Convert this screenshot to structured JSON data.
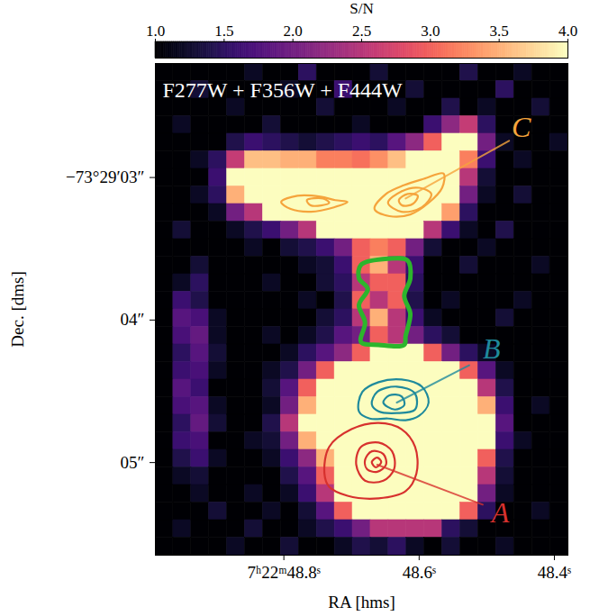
{
  "chart_data": {
    "type": "heatmap",
    "annotation": "F277W + F356W + F444W",
    "x_label": "RA [hms]",
    "y_label": "Dec. [dms]",
    "xlim": [
      48.99,
      48.38
    ],
    "xticks": [
      {
        "value": 48.8,
        "label": "7ʰ22ᵐ48.8ˢ"
      },
      {
        "value": 48.6,
        "label": "48.6ˢ"
      },
      {
        "value": 48.4,
        "label": "48.4ˢ"
      }
    ],
    "ylim": [
      2.2,
      5.65
    ],
    "yticks": [
      {
        "value": 3,
        "label": "−73°29′03″"
      },
      {
        "value": 4,
        "label": "04″"
      },
      {
        "value": 5,
        "label": "05″"
      }
    ],
    "colorbar": {
      "label": "S/N",
      "lim": [
        1,
        4
      ],
      "color": "magma",
      "ticks": [
        {
          "value": 1,
          "label": "1.0"
        },
        1.5,
        {
          "value": 2,
          "label": "2.0"
        },
        2.5,
        {
          "value": 3,
          "label": "3.0"
        },
        3.5,
        {
          "value": 4,
          "label": "4.0"
        }
      ]
    },
    "cells": [
      [
        1,
        1,
        1,
        1,
        1,
        1.2,
        1,
        1,
        1.5,
        1,
        1,
        1,
        1.3,
        1,
        1,
        1,
        1,
        1.4,
        1,
        1,
        1.2,
        1,
        1
      ],
      [
        1,
        1,
        1.3,
        1,
        1,
        1,
        1,
        1.2,
        1,
        1,
        1.6,
        1,
        1,
        1,
        1.3,
        1,
        1,
        1,
        1,
        1.5,
        1,
        1,
        1
      ],
      [
        1,
        1,
        1,
        1,
        1.2,
        1,
        1,
        1,
        1,
        1.3,
        1,
        1,
        1,
        1.2,
        1,
        1,
        1.4,
        1,
        1.2,
        1,
        1,
        1.3,
        1
      ],
      [
        1,
        1.2,
        1,
        1,
        1,
        1,
        1.3,
        1,
        1,
        1,
        1,
        1.2,
        1,
        1,
        1,
        1.6,
        2.2,
        2.6,
        1.5,
        1,
        1,
        1,
        1
      ],
      [
        1,
        1,
        1,
        1,
        1.4,
        1.6,
        1.5,
        1.4,
        1.3,
        1.4,
        1.5,
        1.6,
        1.5,
        1.8,
        2.2,
        3,
        4,
        4,
        2,
        1.2,
        1,
        1,
        1.2
      ],
      [
        1,
        1,
        1.2,
        1.5,
        2.6,
        3.6,
        3.6,
        3.5,
        3.5,
        3.2,
        3.2,
        3.1,
        3.3,
        3.6,
        4,
        4,
        4,
        3.2,
        1.6,
        1,
        1.2,
        1,
        1
      ],
      [
        1,
        1,
        1,
        1.6,
        4,
        4,
        4,
        4,
        4,
        4,
        4,
        4,
        4,
        4,
        4,
        4,
        4,
        2.5,
        1.3,
        1,
        1,
        1,
        1
      ],
      [
        1,
        1,
        1.2,
        1.5,
        3.5,
        4,
        4,
        4,
        4,
        4,
        4,
        4,
        4,
        4,
        4,
        4,
        4,
        2,
        1.2,
        1,
        1.3,
        1,
        1
      ],
      [
        1,
        1,
        1,
        1.2,
        2,
        2.5,
        4,
        4,
        4,
        4,
        4,
        4,
        4,
        4,
        4,
        4,
        3.4,
        1.5,
        1,
        1,
        1,
        1,
        1
      ],
      [
        1,
        1.3,
        1,
        1,
        1.2,
        1.4,
        1.6,
        2,
        2.5,
        4,
        4,
        4,
        4,
        4,
        4,
        2.5,
        1.6,
        1.2,
        1,
        1.4,
        1,
        1,
        1
      ],
      [
        1,
        1,
        1,
        1,
        1,
        1.2,
        1,
        1.3,
        1.4,
        1.6,
        2,
        3,
        3.2,
        3,
        2,
        1.3,
        1,
        1,
        1.2,
        1,
        1,
        1,
        1
      ],
      [
        1,
        1,
        1.3,
        1,
        1,
        1,
        1,
        1,
        1.2,
        1.3,
        1.6,
        3,
        3.5,
        2.5,
        1.6,
        1,
        1,
        1.3,
        1,
        1,
        1,
        1.2,
        1
      ],
      [
        1,
        1.2,
        1.5,
        1,
        1,
        1,
        1.2,
        1,
        1,
        1.3,
        1.5,
        2.5,
        3,
        3,
        1.5,
        1,
        1,
        1,
        1,
        1,
        1,
        1,
        1
      ],
      [
        1,
        1.6,
        1.4,
        1,
        1,
        1,
        1,
        1,
        1.2,
        1,
        1.4,
        3,
        2.5,
        3,
        1.4,
        1,
        1.2,
        1,
        1,
        1,
        1.2,
        1,
        1
      ],
      [
        1,
        1.8,
        1.7,
        1.2,
        1,
        1,
        1,
        1,
        1,
        1.3,
        1.5,
        2.5,
        3.5,
        2.5,
        1.6,
        1.2,
        1,
        1,
        1,
        1.3,
        1,
        1,
        1
      ],
      [
        1,
        1.7,
        1.9,
        1.2,
        1,
        1,
        1.2,
        1,
        1.2,
        1.4,
        1.8,
        2,
        3,
        2.5,
        2,
        1.5,
        1.3,
        1,
        1,
        1,
        1,
        1,
        1
      ],
      [
        1,
        1.5,
        1.8,
        1.3,
        1,
        1,
        1,
        1.2,
        1.5,
        1.8,
        2.2,
        3,
        4,
        4,
        4,
        3,
        2,
        1.5,
        1.2,
        1,
        1,
        1,
        1
      ],
      [
        1,
        1.6,
        1.7,
        1.2,
        1,
        1,
        1.2,
        1.4,
        2,
        3,
        4,
        4,
        4,
        4,
        4,
        4,
        4,
        3,
        1.8,
        1.2,
        1,
        1,
        1
      ],
      [
        1,
        1.8,
        1.6,
        1,
        1,
        1,
        1.3,
        1.8,
        3,
        4,
        4,
        4,
        4,
        4,
        4,
        4,
        4,
        4,
        2.5,
        1.4,
        1,
        1,
        1
      ],
      [
        1,
        1.7,
        1.8,
        1.2,
        1,
        1,
        1.2,
        2,
        3.5,
        4,
        4,
        4,
        4,
        4,
        4,
        4,
        4,
        4,
        3.5,
        1.6,
        1,
        1.2,
        1
      ],
      [
        1,
        1.5,
        1.9,
        1.3,
        1,
        1,
        1.4,
        2.5,
        4,
        4,
        4,
        4,
        4,
        4,
        4,
        4,
        4,
        4,
        4,
        1.8,
        1,
        1,
        1
      ],
      [
        1,
        1.6,
        1.7,
        1,
        1,
        1.2,
        1.3,
        2,
        3.5,
        4,
        4,
        4,
        4,
        4,
        4,
        4,
        4,
        4,
        4,
        1.6,
        1.2,
        1,
        1
      ],
      [
        1,
        1.4,
        1.6,
        1.2,
        1,
        1,
        1.2,
        1.6,
        2.2,
        3.5,
        4,
        4,
        4,
        4,
        4,
        4,
        4,
        4,
        3,
        1.4,
        1,
        1,
        1
      ],
      [
        1,
        1.2,
        1.3,
        1,
        1,
        1,
        1,
        1.4,
        1.8,
        3,
        4,
        4,
        4,
        4,
        4,
        4,
        4,
        4,
        2.5,
        1.3,
        1,
        1,
        1
      ],
      [
        1,
        1,
        1.2,
        1,
        1,
        1.2,
        1,
        1.2,
        1.6,
        2.5,
        4,
        4,
        4,
        4,
        4,
        4,
        4,
        4,
        2,
        1.2,
        1,
        1,
        1
      ],
      [
        1,
        1,
        1,
        1.3,
        1,
        1,
        1.2,
        1,
        1.3,
        1.8,
        3,
        4,
        4,
        4,
        4,
        4,
        4,
        3,
        1.5,
        1,
        1,
        1.2,
        1
      ],
      [
        1,
        1.2,
        1,
        1,
        1,
        1.3,
        1,
        1,
        1.2,
        1.4,
        1.6,
        2,
        2.5,
        2.5,
        2.5,
        2.5,
        1.5,
        1.3,
        1,
        1,
        1,
        1,
        1
      ],
      [
        1,
        1,
        1,
        1,
        1.2,
        1,
        1,
        1.3,
        1,
        1,
        1.2,
        1.4,
        1.3,
        1.5,
        1.2,
        1,
        1.3,
        1,
        1,
        1.2,
        1,
        1,
        1
      ]
    ],
    "contours": [
      {
        "name": "C",
        "color": "#f5a43c",
        "rings": [
          [
            [
              48.804,
              3.171
            ],
            [
              48.78,
              3.128
            ],
            [
              48.746,
              3.134
            ],
            [
              48.724,
              3.159
            ],
            [
              48.706,
              3.171
            ],
            [
              48.726,
              3.209
            ],
            [
              48.76,
              3.24
            ],
            [
              48.79,
              3.221
            ]
          ],
          [
            [
              48.766,
              3.159
            ],
            [
              48.742,
              3.147
            ],
            [
              48.733,
              3.178
            ],
            [
              48.76,
              3.196
            ]
          ],
          [
            [
              48.666,
              3.221
            ],
            [
              48.649,
              3.115
            ],
            [
              48.622,
              3.053
            ],
            [
              48.593,
              3.009
            ],
            [
              48.564,
              2.972
            ],
            [
              48.566,
              3.072
            ],
            [
              48.586,
              3.178
            ],
            [
              48.613,
              3.259
            ],
            [
              48.644,
              3.271
            ]
          ],
          [
            [
              48.646,
              3.178
            ],
            [
              48.626,
              3.097
            ],
            [
              48.6,
              3.072
            ],
            [
              48.582,
              3.115
            ],
            [
              48.596,
              3.209
            ],
            [
              48.626,
              3.24
            ]
          ],
          [
            [
              48.63,
              3.159
            ],
            [
              48.617,
              3.115
            ],
            [
              48.602,
              3.128
            ],
            [
              48.609,
              3.184
            ],
            [
              48.625,
              3.196
            ]
          ]
        ],
        "leader": [
          [
            48.62,
            3.147
          ],
          [
            48.467,
            2.742
          ]
        ],
        "label_at": [
          48.449,
          2.648
        ]
      },
      {
        "name": "B",
        "color": "#1f8a9c",
        "rings": [
          [
            [
              48.689,
              4.641
            ],
            [
              48.684,
              4.504
            ],
            [
              48.66,
              4.436
            ],
            [
              48.626,
              4.417
            ],
            [
              48.596,
              4.467
            ],
            [
              48.586,
              4.579
            ],
            [
              48.6,
              4.672
            ],
            [
              48.62,
              4.703
            ],
            [
              48.646,
              4.691
            ],
            [
              48.673,
              4.691
            ]
          ],
          [
            [
              48.67,
              4.591
            ],
            [
              48.662,
              4.504
            ],
            [
              48.633,
              4.467
            ],
            [
              48.606,
              4.516
            ],
            [
              48.606,
              4.628
            ],
            [
              48.633,
              4.653
            ],
            [
              48.66,
              4.641
            ]
          ],
          [
            [
              48.653,
              4.579
            ],
            [
              48.644,
              4.529
            ],
            [
              48.626,
              4.535
            ],
            [
              48.622,
              4.597
            ],
            [
              48.636,
              4.628
            ]
          ]
        ],
        "leader": [
          [
            48.633,
            4.579
          ],
          [
            48.526,
            4.317
          ]
        ],
        "label_at": [
          48.493,
          4.205
        ]
      },
      {
        "name": "A",
        "color": "#d7312e",
        "rings": [
          [
            [
              48.74,
              5.077
            ],
            [
              48.733,
              4.89
            ],
            [
              48.7,
              4.766
            ],
            [
              48.66,
              4.722
            ],
            [
              48.626,
              4.766
            ],
            [
              48.606,
              4.89
            ],
            [
              48.604,
              5.077
            ],
            [
              48.62,
              5.201
            ],
            [
              48.66,
              5.251
            ],
            [
              48.706,
              5.233
            ],
            [
              48.733,
              5.17
            ]
          ],
          [
            [
              48.693,
              5.015
            ],
            [
              48.686,
              4.89
            ],
            [
              48.66,
              4.859
            ],
            [
              48.64,
              4.921
            ],
            [
              48.637,
              5.046
            ],
            [
              48.653,
              5.127
            ],
            [
              48.68,
              5.127
            ]
          ],
          [
            [
              48.68,
              4.983
            ],
            [
              48.67,
              4.921
            ],
            [
              48.653,
              4.94
            ],
            [
              48.649,
              5.015
            ],
            [
              48.662,
              5.065
            ],
            [
              48.677,
              5.046
            ]
          ],
          [
            [
              48.67,
              4.996
            ],
            [
              48.662,
              4.965
            ],
            [
              48.656,
              4.996
            ],
            [
              48.664,
              5.033
            ]
          ]
        ],
        "leader": [
          [
            48.662,
            5.015
          ],
          [
            48.506,
            5.295
          ]
        ],
        "label_at": [
          48.48,
          5.357
        ]
      },
      {
        "color": "#2cb52c",
        "rings": [
          [
            [
              48.686,
              3.613
            ],
            [
              48.646,
              3.57
            ],
            [
              48.617,
              3.582
            ],
            [
              48.613,
              3.707
            ],
            [
              48.622,
              3.831
            ],
            [
              48.613,
              3.956
            ],
            [
              48.62,
              4.112
            ],
            [
              48.622,
              4.174
            ],
            [
              48.66,
              4.174
            ],
            [
              48.686,
              4.155
            ],
            [
              48.68,
              4.018
            ],
            [
              48.689,
              3.894
            ],
            [
              48.676,
              3.782
            ],
            [
              48.689,
              3.707
            ]
          ]
        ]
      }
    ]
  }
}
